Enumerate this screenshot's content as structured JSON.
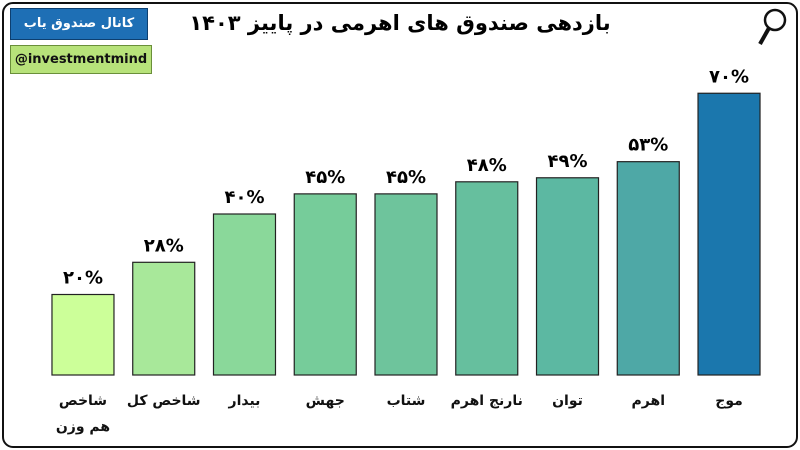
{
  "badge": {
    "channel": "کانال صندوق یاب",
    "handle": "@investmentmind"
  },
  "chart_data": {
    "type": "bar",
    "title": "بازدهی صندوق های اهرمی در پاییز ۱۴۰۳",
    "categories": [
      "شاخص هم وزن",
      "شاخص کل",
      "بیدار",
      "جهش",
      "شتاب",
      "نارنج اهرم",
      "توان",
      "اهرم",
      "موج"
    ],
    "values": [
      20,
      28,
      40,
      45,
      45,
      48,
      49,
      53,
      70
    ],
    "value_labels": [
      "۲۰%",
      "۲۸%",
      "۴۰%",
      "۴۵%",
      "۴۵%",
      "۴۸%",
      "۴۹%",
      "۵۳%",
      "۷۰%"
    ],
    "colors": [
      "#ccff99",
      "#a8e89a",
      "#8ad89a",
      "#76cc9a",
      "#6ec49c",
      "#66bf9e",
      "#5cb8a2",
      "#4ea8a6",
      "#1b77ad"
    ],
    "ylim": [
      0,
      80
    ],
    "grid": false
  }
}
